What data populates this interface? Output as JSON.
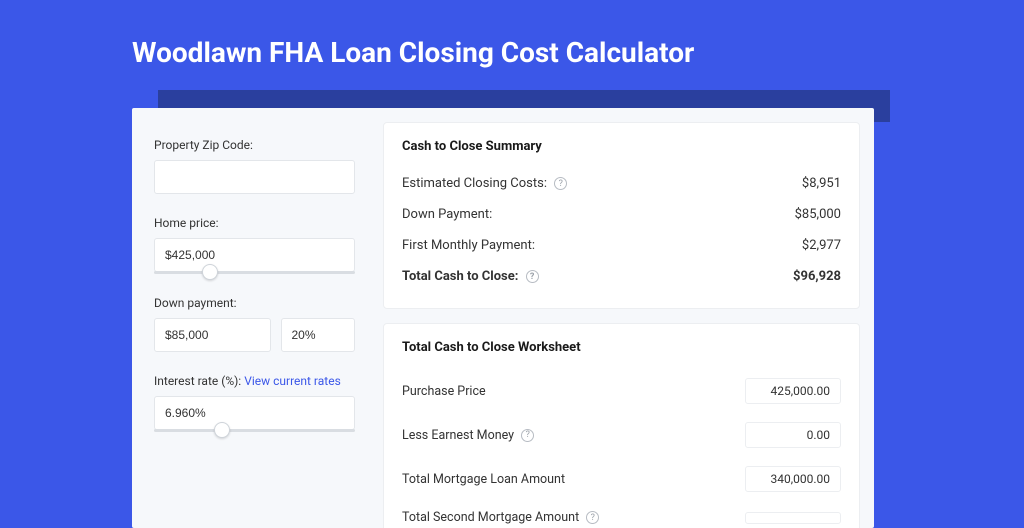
{
  "page": {
    "title": "Woodlawn FHA Loan Closing Cost Calculator",
    "bg_color": "#3b57e8",
    "shadow_color": "#2a3f9e",
    "card_bg": "#f6f8fb"
  },
  "inputs": {
    "zip": {
      "label": "Property Zip Code:",
      "value": ""
    },
    "home_price": {
      "label": "Home price:",
      "value": "$425,000",
      "slider_pct": 24
    },
    "down_payment": {
      "label": "Down payment:",
      "value": "$85,000",
      "pct_value": "20%"
    },
    "interest_rate": {
      "label": "Interest rate (%):",
      "link_text": "View current rates",
      "value": "6.960%",
      "slider_pct": 30
    }
  },
  "summary": {
    "title": "Cash to Close Summary",
    "rows": [
      {
        "label": "Estimated Closing Costs:",
        "help": true,
        "value": "$8,951",
        "bold": false
      },
      {
        "label": "Down Payment:",
        "help": false,
        "value": "$85,000",
        "bold": false
      },
      {
        "label": "First Monthly Payment:",
        "help": false,
        "value": "$2,977",
        "bold": false
      },
      {
        "label": "Total Cash to Close:",
        "help": true,
        "value": "$96,928",
        "bold": true
      }
    ]
  },
  "worksheet": {
    "title": "Total Cash to Close Worksheet",
    "rows": [
      {
        "label": "Purchase Price",
        "help": false,
        "value": "425,000.00"
      },
      {
        "label": "Less Earnest Money",
        "help": true,
        "value": "0.00"
      },
      {
        "label": "Total Mortgage Loan Amount",
        "help": false,
        "value": "340,000.00"
      },
      {
        "label": "Total Second Mortgage Amount",
        "help": true,
        "value": ""
      }
    ]
  }
}
